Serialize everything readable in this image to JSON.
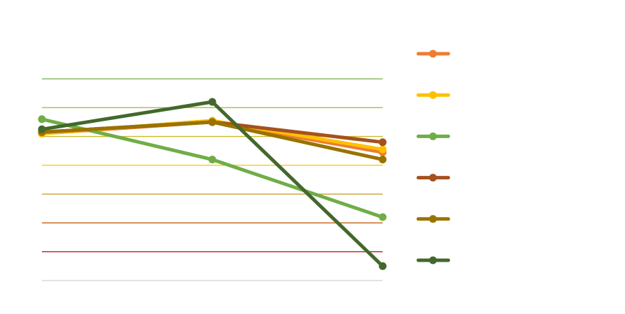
{
  "chart_data": {
    "type": "line",
    "title": "",
    "xlabel": "",
    "ylabel": "",
    "categories": [
      "",
      "",
      ""
    ],
    "ylim": [
      0,
      7
    ],
    "grid": true,
    "gridline_colors": [
      "#d9d9d9",
      "#c00000",
      "#c55a11",
      "#c9961b",
      "#ffc000",
      "#c9b828",
      "#a4b530",
      "#70ad47"
    ],
    "legend_position": "right",
    "series": [
      {
        "color": "#ed7d31",
        "values": [
          5.1,
          5.5,
          4.45
        ]
      },
      {
        "color": "#ffc000",
        "values": [
          5.1,
          5.55,
          4.55
        ]
      },
      {
        "color": "#70ad47",
        "values": [
          5.6,
          4.2,
          2.2
        ]
      },
      {
        "color": "#a5511f",
        "values": [
          5.15,
          5.5,
          4.8
        ]
      },
      {
        "color": "#997300",
        "values": [
          5.15,
          5.5,
          4.2
        ]
      },
      {
        "color": "#43682b",
        "values": [
          5.25,
          6.2,
          0.5
        ]
      }
    ]
  }
}
